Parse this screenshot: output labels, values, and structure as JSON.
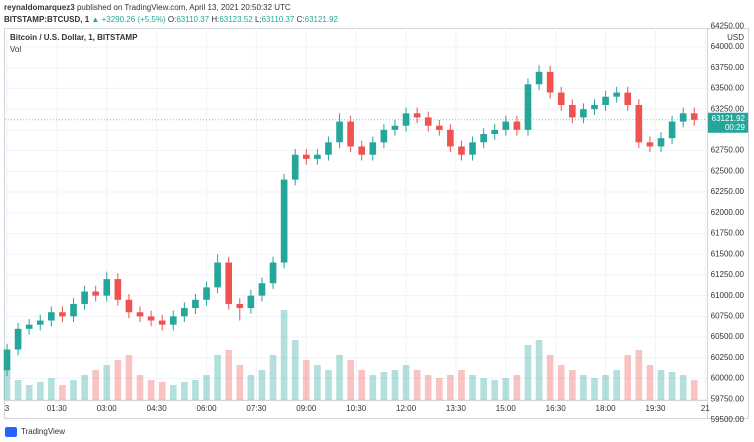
{
  "header": {
    "publisher": "reynaldomarquez3",
    "published_text": "published on TradingView.com, April 13, 2021 20:50:32 UTC",
    "symbol": "BITSTAMP:BTCUSD, 1",
    "arrow": "▲",
    "change": "+3290.26 (+5.5%)",
    "ohlc": [
      {
        "label": "O:",
        "value": 63110.37
      },
      {
        "label": "H:",
        "value": 63123.52
      },
      {
        "label": "L:",
        "value": 63110.37
      },
      {
        "label": "C:",
        "value": 63121.92
      }
    ]
  },
  "footer": {
    "brand": "TradingView"
  },
  "chart_data": {
    "type": "candlestick",
    "title": "Bitcoin / U.S. Dollar, 1, BITSTAMP",
    "volume_label": "Vol",
    "currency": "USD",
    "countdown": "00:29",
    "up_color": "#26a69a",
    "down_color": "#ef5350",
    "grid": true,
    "x": [
      "00:00",
      "00:20",
      "00:40",
      "01:00",
      "01:20",
      "01:40",
      "02:00",
      "02:20",
      "02:40",
      "03:00",
      "03:20",
      "03:40",
      "04:00",
      "04:20",
      "04:40",
      "05:00",
      "05:20",
      "05:40",
      "06:00",
      "06:20",
      "06:40",
      "07:00",
      "07:20",
      "07:40",
      "08:00",
      "08:20",
      "08:40",
      "09:00",
      "09:20",
      "09:40",
      "10:00",
      "10:20",
      "10:40",
      "11:00",
      "11:20",
      "11:40",
      "12:00",
      "12:20",
      "12:40",
      "13:00",
      "13:20",
      "13:40",
      "14:00",
      "14:20",
      "14:40",
      "15:00",
      "15:20",
      "15:40",
      "16:00",
      "16:20",
      "16:40",
      "17:00",
      "17:20",
      "17:40",
      "18:00",
      "18:20",
      "18:40",
      "19:00",
      "19:20",
      "19:40",
      "20:00",
      "20:20",
      "20:40"
    ],
    "open": [
      60100,
      60350,
      60600,
      60650,
      60700,
      60800,
      60750,
      60900,
      61050,
      61000,
      61200,
      60950,
      60800,
      60750,
      60700,
      60650,
      60750,
      60850,
      60950,
      61100,
      61400,
      60900,
      60850,
      61000,
      61150,
      61400,
      62400,
      62700,
      62650,
      62700,
      62850,
      63100,
      62800,
      62700,
      62850,
      63000,
      63050,
      63200,
      63150,
      63050,
      63000,
      62800,
      62700,
      62850,
      62950,
      63000,
      63100,
      63000,
      63550,
      63700,
      63450,
      63300,
      63150,
      63250,
      63300,
      63400,
      63450,
      63300,
      62850,
      62800,
      62900,
      63100,
      63200
    ],
    "high": [
      60420,
      60670,
      60720,
      60770,
      60870,
      60870,
      60970,
      61120,
      61120,
      61290,
      61270,
      61020,
      60870,
      60820,
      60770,
      60820,
      60920,
      61020,
      61170,
      61500,
      61470,
      60970,
      61070,
      61220,
      61470,
      62470,
      62770,
      62770,
      62770,
      62920,
      63200,
      63170,
      62870,
      62920,
      63070,
      63120,
      63270,
      63270,
      63220,
      63120,
      63070,
      62870,
      62920,
      63020,
      63070,
      63170,
      63170,
      63620,
      63780,
      63770,
      63520,
      63370,
      63320,
      63370,
      63470,
      63520,
      63520,
      63370,
      62920,
      62970,
      63170,
      63270,
      63270
    ],
    "low": [
      60030,
      60280,
      60530,
      60580,
      60630,
      60680,
      60680,
      60830,
      60930,
      60930,
      60880,
      60730,
      60680,
      60630,
      60580,
      60580,
      60680,
      60780,
      60880,
      61030,
      60830,
      60700,
      60780,
      60930,
      61080,
      61330,
      62330,
      62580,
      62580,
      62630,
      62780,
      62730,
      62630,
      62630,
      62780,
      62930,
      62980,
      63080,
      62980,
      62930,
      62730,
      62630,
      62630,
      62780,
      62880,
      62930,
      62930,
      62930,
      63480,
      63380,
      63230,
      63080,
      63080,
      63180,
      63230,
      63330,
      63230,
      62780,
      62730,
      62730,
      62830,
      63030,
      63050
    ],
    "close": [
      60350,
      60600,
      60650,
      60700,
      60800,
      60750,
      60900,
      61050,
      61000,
      61200,
      60950,
      60800,
      60750,
      60700,
      60650,
      60750,
      60850,
      60950,
      61100,
      61400,
      60900,
      60850,
      61000,
      61150,
      61400,
      62400,
      62700,
      62650,
      62700,
      62850,
      63100,
      62800,
      62700,
      62850,
      63000,
      63050,
      63200,
      63150,
      63050,
      63000,
      62800,
      62700,
      62850,
      62950,
      63000,
      63100,
      63000,
      63550,
      63700,
      63450,
      63300,
      63150,
      63250,
      63300,
      63400,
      63450,
      63300,
      62850,
      62800,
      62900,
      63100,
      63200,
      63121.92
    ],
    "volume": [
      30,
      20,
      15,
      18,
      22,
      15,
      20,
      25,
      30,
      35,
      40,
      45,
      25,
      20,
      18,
      15,
      18,
      20,
      25,
      45,
      50,
      35,
      25,
      30,
      45,
      90,
      60,
      40,
      35,
      30,
      45,
      40,
      30,
      25,
      28,
      30,
      35,
      30,
      25,
      22,
      25,
      30,
      25,
      22,
      20,
      22,
      25,
      55,
      60,
      45,
      35,
      30,
      25,
      22,
      25,
      30,
      45,
      50,
      35,
      30,
      28,
      25,
      20
    ],
    "xlim": [
      "00:00",
      "21:03"
    ],
    "xticks": [
      {
        "value": "00:00",
        "label": "3"
      },
      "01:30",
      "03:00",
      "04:30",
      "06:00",
      "07:30",
      "09:00",
      "10:30",
      "12:00",
      "13:30",
      "15:00",
      "16:30",
      "18:00",
      "19:30",
      {
        "value": "21:00",
        "label": "21"
      }
    ],
    "ylim": [
      59524,
      64229
    ],
    "yticks": [
      {
        "value": 59500,
        "label": "59500.00"
      },
      {
        "value": 59750,
        "label": "59750.00"
      },
      {
        "value": 60000,
        "label": "60000.00"
      },
      {
        "value": 60250,
        "label": "60250.00"
      },
      {
        "value": 60500,
        "label": "60500.00"
      },
      {
        "value": 60750,
        "label": "60750.00"
      },
      {
        "value": 61000,
        "label": "61000.00"
      },
      {
        "value": 61250,
        "label": "61250.00"
      },
      {
        "value": 61500,
        "label": "61500.00"
      },
      {
        "value": 61750,
        "label": "61750.00"
      },
      {
        "value": 62000,
        "label": "62000.00"
      },
      {
        "value": 62250,
        "label": "62250.00"
      },
      {
        "value": 62500,
        "label": "62500.00"
      },
      {
        "value": 62750,
        "label": "62750.00"
      },
      {
        "value": 63000,
        "label": "63000.00"
      },
      {
        "value": 63250,
        "label": "63250.00"
      },
      {
        "value": 63500,
        "label": "63500.00"
      },
      {
        "value": 63750,
        "label": "63750.00"
      },
      {
        "value": 64000,
        "label": "64000.00"
      },
      {
        "value": 64250,
        "label": "64250.00"
      }
    ]
  }
}
